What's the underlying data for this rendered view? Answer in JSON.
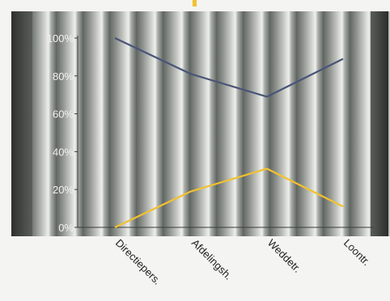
{
  "chart_data": {
    "type": "line",
    "categories": [
      "Directiepers.",
      "Afdelingsh.",
      "Weddetr.",
      "Loontr."
    ],
    "series": [
      {
        "values": [
          100,
          81,
          69,
          89
        ],
        "color": "#4a5478"
      },
      {
        "values": [
          0,
          19,
          31,
          11
        ],
        "color": "#f2c12e"
      }
    ],
    "yticks": [
      "0%",
      "20%",
      "40%",
      "60%",
      "80%",
      "100%"
    ],
    "ylim": [
      0,
      100
    ],
    "grid": false,
    "accent_color": "#f2c12e"
  }
}
